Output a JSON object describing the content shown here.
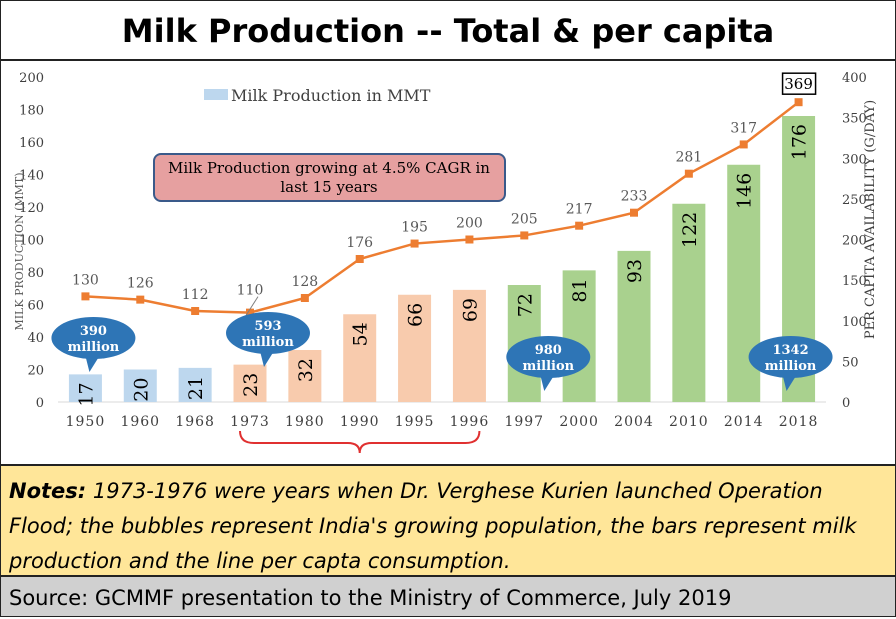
{
  "title": "Milk Production -- Total & per capita",
  "chart_data": {
    "type": "bar",
    "categories": [
      "1950",
      "1960",
      "1968",
      "1973",
      "1980",
      "1990",
      "1995",
      "1996",
      "1997",
      "2000",
      "2004",
      "2010",
      "2014",
      "2018"
    ],
    "series": [
      {
        "name": "Milk Production in MMT",
        "kind": "bar",
        "values": [
          17,
          20,
          21,
          23,
          32,
          54,
          66,
          69,
          72,
          81,
          93,
          122,
          146,
          176
        ],
        "colors": [
          "#bdd7ee",
          "#bdd7ee",
          "#bdd7ee",
          "#f8cbad",
          "#f8cbad",
          "#f8cbad",
          "#f8cbad",
          "#f8cbad",
          "#a9d18e",
          "#a9d18e",
          "#a9d18e",
          "#a9d18e",
          "#a9d18e",
          "#a9d18e"
        ]
      },
      {
        "name": "",
        "kind": "line",
        "axis": "right",
        "values": [
          130,
          126,
          112,
          110,
          128,
          176,
          195,
          200,
          205,
          217,
          233,
          281,
          317,
          369
        ],
        "color": "#ed7d31"
      }
    ],
    "ylabel": "MILK PRODUCTION (MMT)",
    "ylabel_right": "PER CAPITA AVAILABILITY (G/DAY)",
    "ylim": [
      0,
      200
    ],
    "ylim_right": [
      0,
      400
    ],
    "yticks": [
      0,
      20,
      40,
      60,
      80,
      100,
      120,
      140,
      160,
      180,
      200
    ],
    "yticks_right": [
      0,
      50,
      100,
      150,
      200,
      250,
      300,
      350,
      400
    ],
    "legend": {
      "label": "Milk Production in MMT",
      "color": "#bdd7ee",
      "placement": "top-left"
    },
    "annotations": {
      "cagr": "Milk Production growing at 4.5% CAGR in last 15 years",
      "highlight_value": "369",
      "bubbles": [
        {
          "category": "1950",
          "line1": "390",
          "line2": "million"
        },
        {
          "category": "1973",
          "line1": "593",
          "line2": "million"
        },
        {
          "category": "1997",
          "line1": "980",
          "line2": "million"
        },
        {
          "category": "2018",
          "line1": "1342",
          "line2": "million"
        }
      ],
      "bracket": {
        "from": "1973",
        "to": "1996"
      }
    },
    "colors": {
      "line": "#ed7d31",
      "bubble": "#2e75b6",
      "cagr_fill": "#e6a0a0",
      "bracket": "#e03030"
    }
  },
  "notes": {
    "label": "Notes:",
    "text": " 1973-1976 were years when Dr. Verghese Kurien launched Operation Flood; the bubbles represent India's growing population, the bars represent milk production and the line per capta consumption."
  },
  "source": "Source: GCMMF presentation to the Ministry of Commerce, July 2019"
}
